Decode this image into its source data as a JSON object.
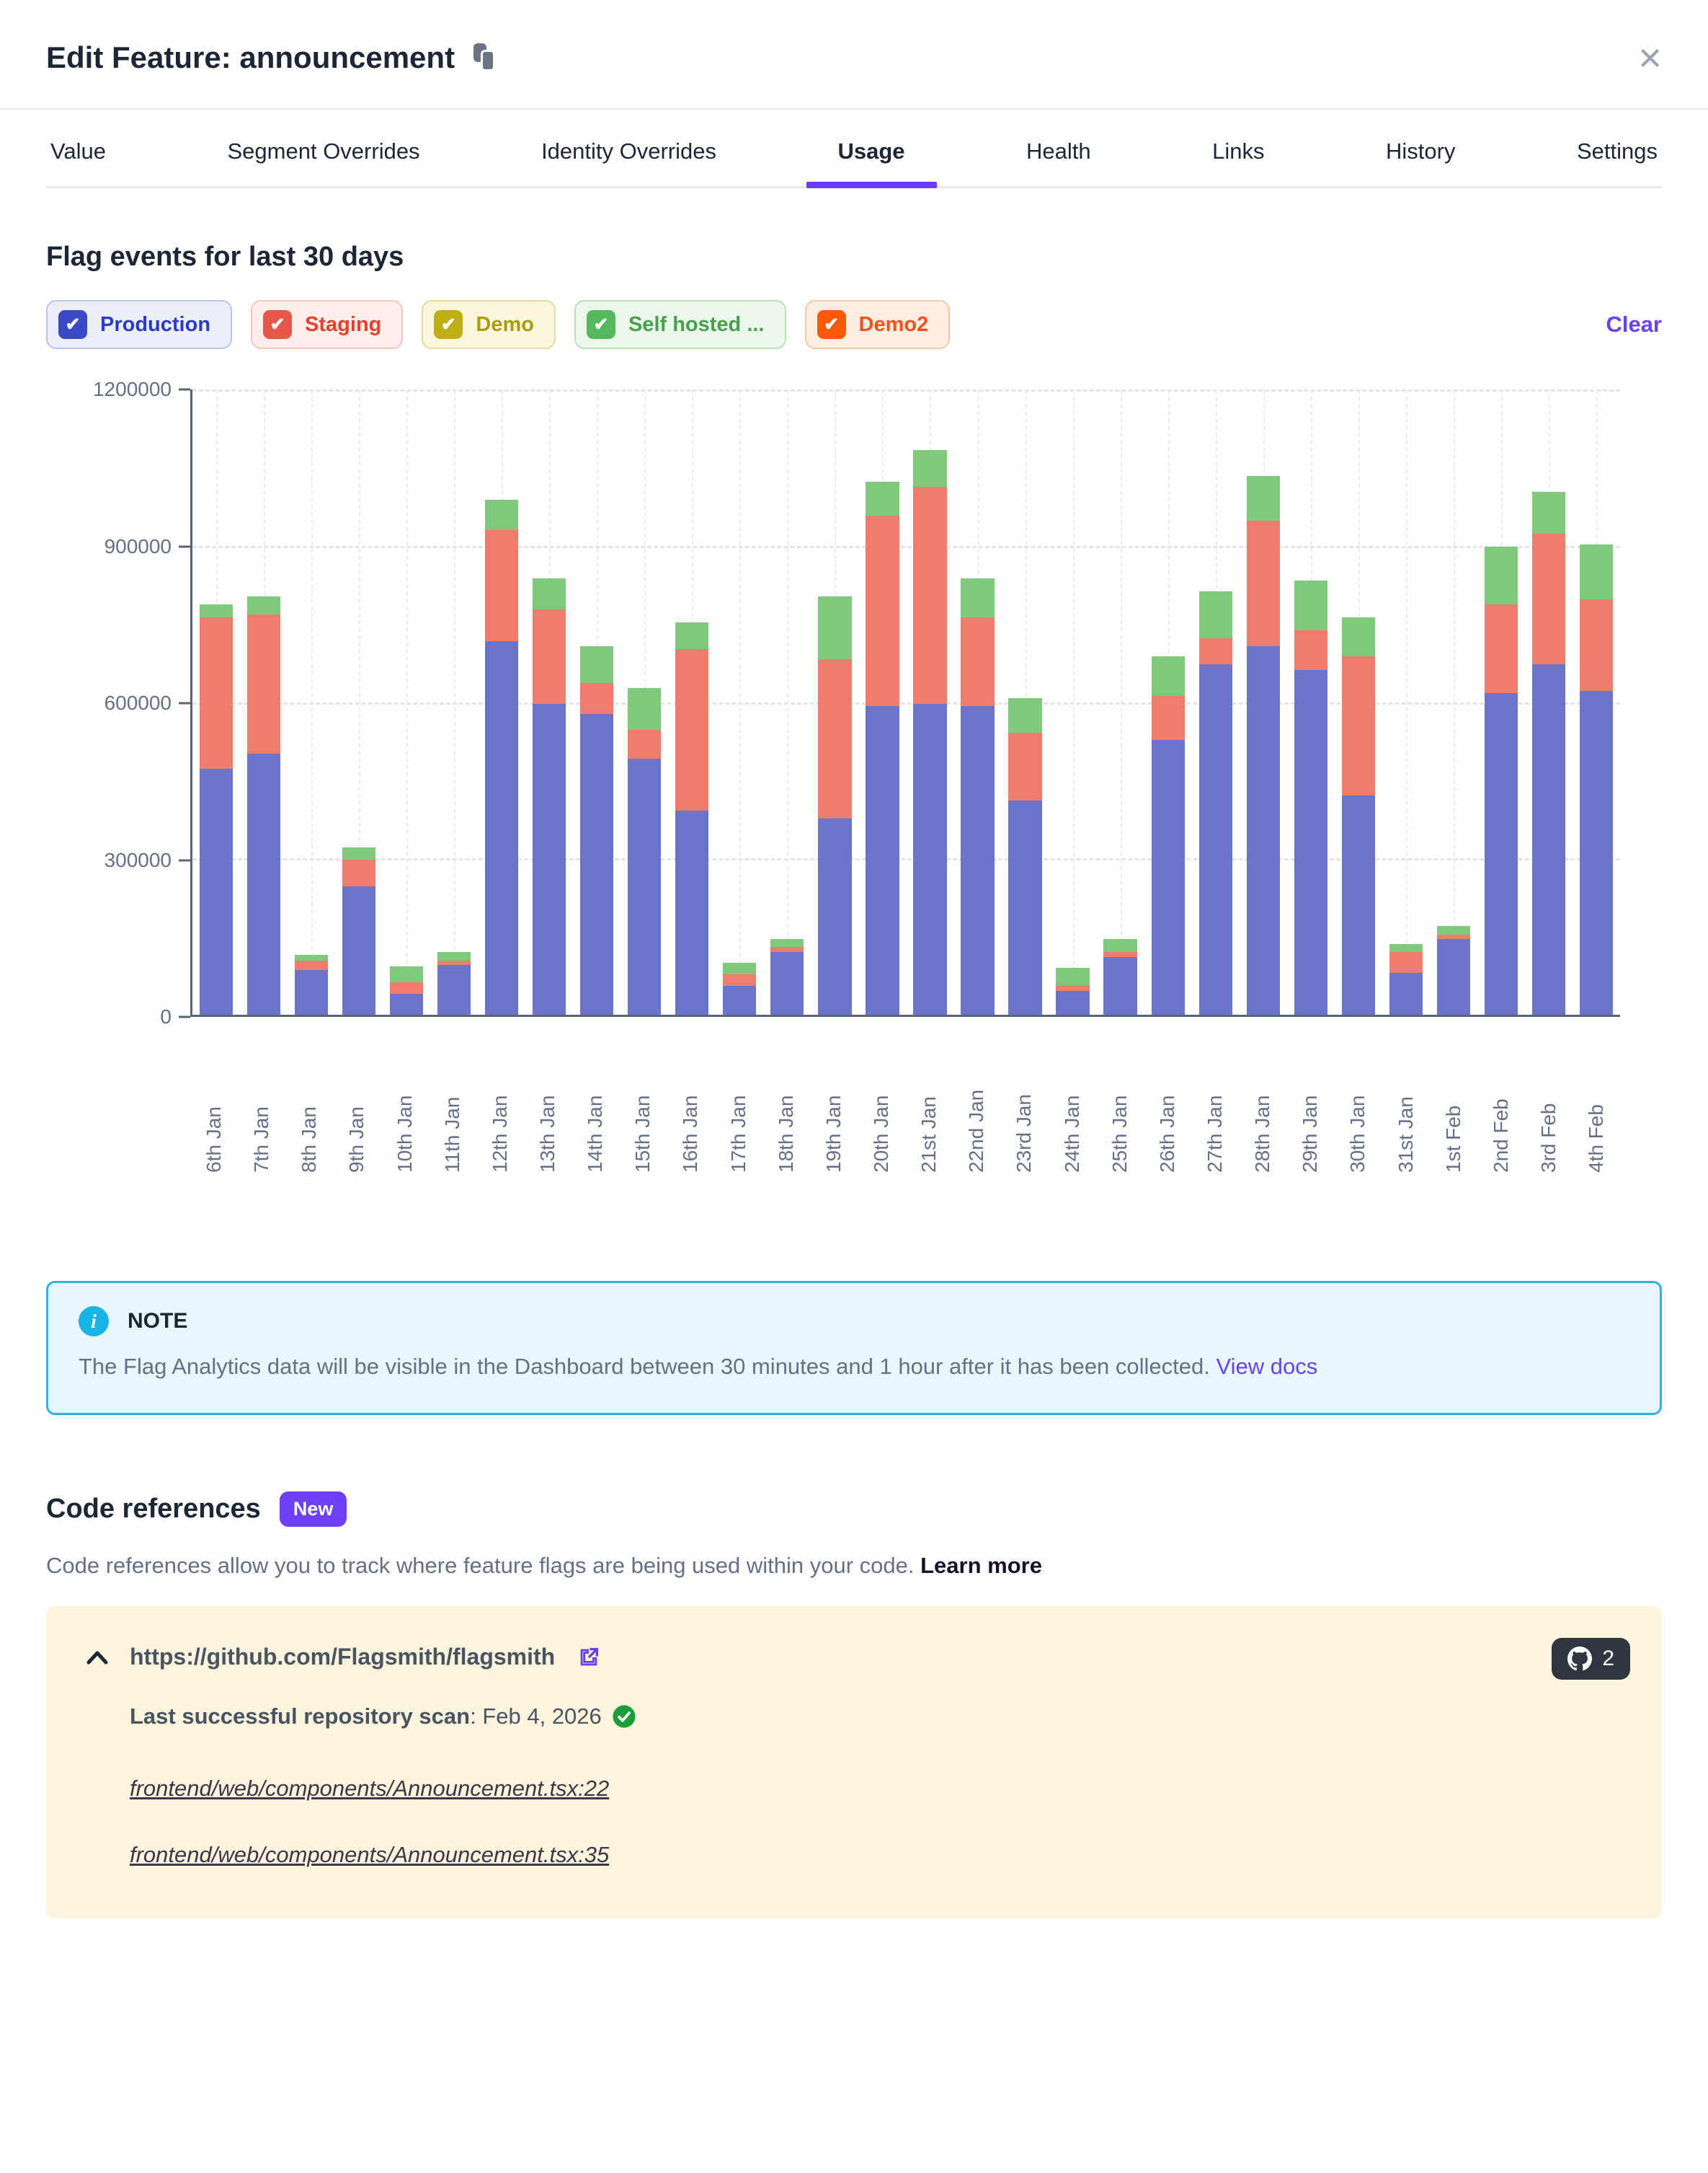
{
  "header": {
    "title": "Edit Feature: announcement",
    "close_label": "×"
  },
  "tabs": [
    {
      "label": "Value",
      "active": false
    },
    {
      "label": "Segment Overrides",
      "active": false
    },
    {
      "label": "Identity Overrides",
      "active": false
    },
    {
      "label": "Usage",
      "active": true
    },
    {
      "label": "Health",
      "active": false
    },
    {
      "label": "Links",
      "active": false
    },
    {
      "label": "History",
      "active": false
    },
    {
      "label": "Settings",
      "active": false
    }
  ],
  "usage": {
    "heading": "Flag events for last 30 days",
    "clear_label": "Clear",
    "legend": [
      {
        "label": "Production",
        "checked": true,
        "checkbox_color": "#3a49c5",
        "text_color": "#2b3cc4",
        "bg": "#eceefa",
        "border": "#bcc3ea"
      },
      {
        "label": "Staging",
        "checked": true,
        "checkbox_color": "#e8584a",
        "text_color": "#e8402e",
        "bg": "#fdeeec",
        "border": "#f5c5bd"
      },
      {
        "label": "Demo",
        "checked": true,
        "checkbox_color": "#bfae18",
        "text_color": "#a99b14",
        "bg": "#faf6dc",
        "border": "#e3dca8"
      },
      {
        "label": "Self hosted ...",
        "checked": true,
        "checkbox_color": "#56b85c",
        "text_color": "#4a9e50",
        "bg": "#eaf7ea",
        "border": "#b9e0bb"
      },
      {
        "label": "Demo2",
        "checked": true,
        "checkbox_color": "#fc5a0a",
        "text_color": "#f4511e",
        "bg": "#fdeee2",
        "border": "#f7c8a8"
      }
    ]
  },
  "chart_data": {
    "type": "bar",
    "stacked": true,
    "title": "Flag events for last 30 days",
    "xlabel": "",
    "ylabel": "",
    "ylim": [
      0,
      1200000
    ],
    "yticks": [
      0,
      300000,
      600000,
      900000,
      1200000
    ],
    "grid": "dashed horizontal and vertical",
    "legend_position": "top chips",
    "categories": [
      "6th Jan",
      "7th Jan",
      "8th Jan",
      "9th Jan",
      "10th Jan",
      "11th Jan",
      "12th Jan",
      "13th Jan",
      "14th Jan",
      "15th Jan",
      "16th Jan",
      "17th Jan",
      "18th Jan",
      "19th Jan",
      "20th Jan",
      "21st Jan",
      "22nd Jan",
      "23rd Jan",
      "24th Jan",
      "25th Jan",
      "26th Jan",
      "27th Jan",
      "28th Jan",
      "29th Jan",
      "30th Jan",
      "31st Jan",
      "1st Feb",
      "2nd Feb",
      "3rd Feb",
      "4th Feb"
    ],
    "series": [
      {
        "name": "Production",
        "color": "#6a74cc",
        "values": [
          470000,
          500000,
          85000,
          245000,
          40000,
          95000,
          715000,
          595000,
          575000,
          490000,
          390000,
          55000,
          120000,
          375000,
          590000,
          595000,
          590000,
          410000,
          45000,
          110000,
          525000,
          670000,
          705000,
          660000,
          420000,
          80000,
          145000,
          615000,
          670000,
          620000
        ]
      },
      {
        "name": "Staging",
        "color": "#ee7d6d",
        "values": [
          290000,
          265000,
          18000,
          52000,
          22000,
          8000,
          212000,
          180000,
          60000,
          55000,
          310000,
          22000,
          10000,
          305000,
          365000,
          415000,
          170000,
          130000,
          12000,
          10000,
          85000,
          50000,
          240000,
          75000,
          265000,
          40000,
          8000,
          170000,
          250000,
          175000
        ]
      },
      {
        "name": "Self hosted ...",
        "color": "#7ec97b",
        "values": [
          25000,
          35000,
          12000,
          23000,
          30000,
          17000,
          58000,
          60000,
          70000,
          80000,
          50000,
          23000,
          15000,
          120000,
          65000,
          70000,
          75000,
          65000,
          33000,
          25000,
          75000,
          90000,
          85000,
          95000,
          75000,
          15000,
          17000,
          110000,
          80000,
          105000
        ]
      }
    ]
  },
  "note": {
    "title": "NOTE",
    "body_before_link": "The Flag Analytics data will be visible in the Dashboard between 30 minutes and 1 hour after it has been collected. ",
    "link_label": "View docs"
  },
  "code_references": {
    "heading": "Code references",
    "badge": "New",
    "description": "Code references allow you to track where feature flags are being used within your code. ",
    "learn_more_label": "Learn more",
    "repo_url": "https://github.com/Flagsmith/flagsmith",
    "reference_count": "2",
    "scan_label": "Last successful repository scan",
    "scan_value": ": Feb 4, 2026",
    "files": [
      "frontend/web/components/Announcement.tsx:22",
      "frontend/web/components/Announcement.tsx:35"
    ]
  }
}
